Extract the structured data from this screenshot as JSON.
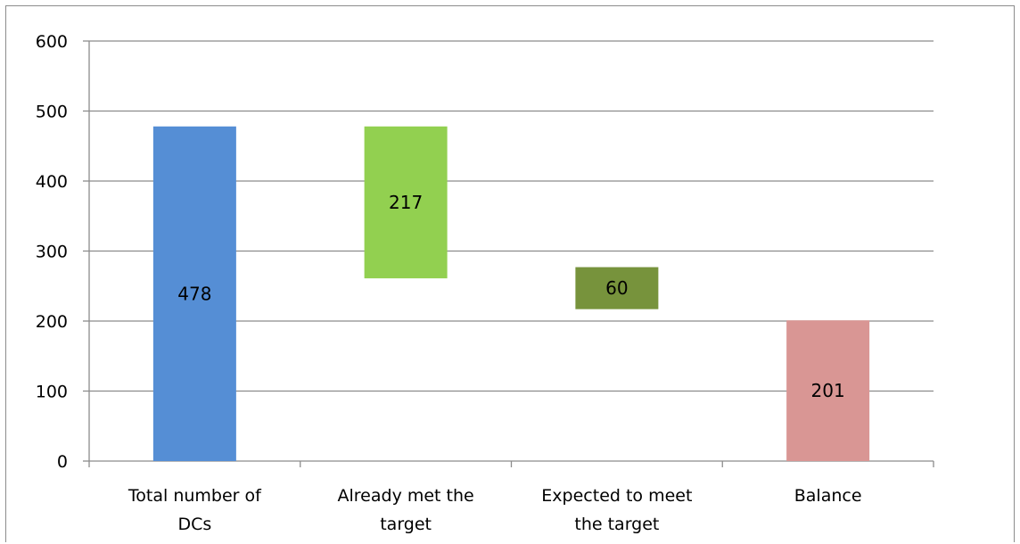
{
  "chart_data": {
    "type": "bar",
    "subtype": "waterfall",
    "categories": [
      [
        "Total number of",
        "DCs"
      ],
      [
        "Already met the",
        "target"
      ],
      [
        "Expected to meet",
        "the target"
      ],
      [
        "Balance"
      ]
    ],
    "values": [
      478,
      217,
      60,
      201
    ],
    "bar_ranges": [
      [
        0,
        478
      ],
      [
        261,
        478
      ],
      [
        217,
        277
      ],
      [
        0,
        201
      ]
    ],
    "data_labels": [
      "478",
      "217",
      "60",
      "201"
    ],
    "colors": [
      "#558ed5",
      "#92d050",
      "#77933c",
      "#d99694"
    ],
    "title": "",
    "xlabel": "",
    "ylabel": "",
    "ylim": [
      0,
      600
    ],
    "yticks": [
      0,
      100,
      200,
      300,
      400,
      500,
      600
    ],
    "grid": true,
    "legend": "none"
  }
}
